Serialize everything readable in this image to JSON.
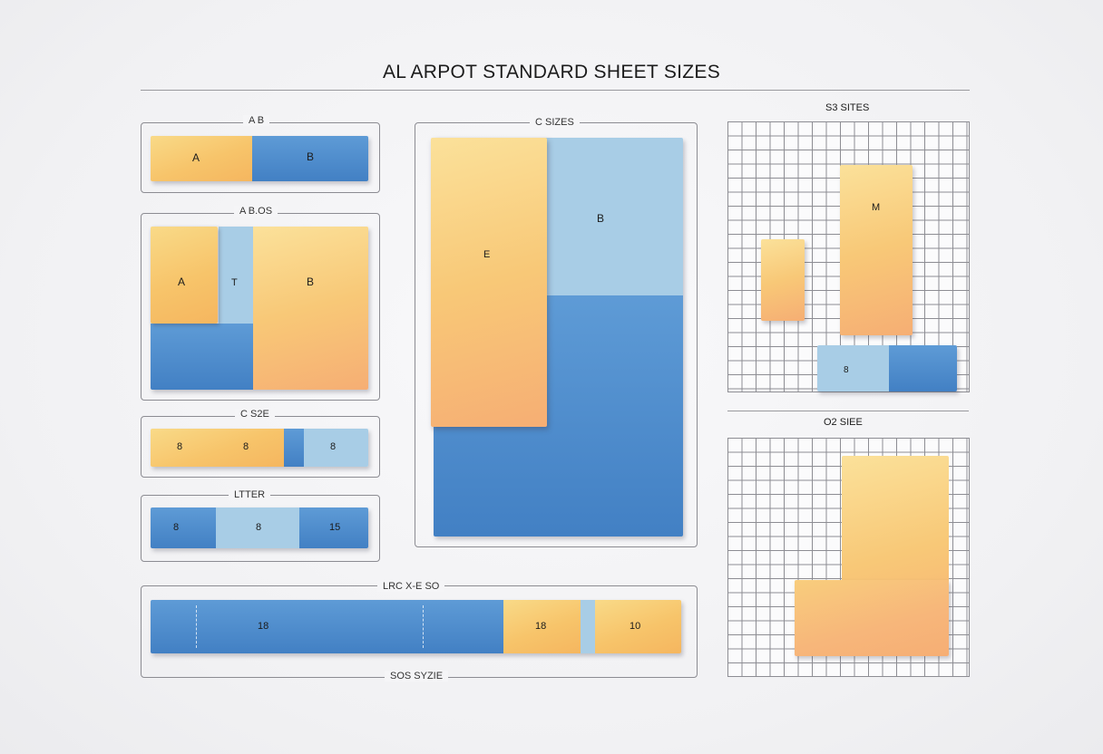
{
  "title": "AL ARPOT STANDARD SHEET SIZES",
  "panels": {
    "ab": {
      "label": "A B",
      "a": "A",
      "b": "B"
    },
    "abos": {
      "label": "A B.OS",
      "a": "A",
      "t": "T",
      "b": "B"
    },
    "csize": {
      "label": "C S2E",
      "v1": "8",
      "v2": "8",
      "v3": "8"
    },
    "letter": {
      "label": "LTTER",
      "v1": "8",
      "v2": "8",
      "v3": "15"
    },
    "large": {
      "label": "LRC X-E SO",
      "v1": "18",
      "v2": "18",
      "v3": "10",
      "bottom_label": "SOS SYZIE"
    },
    "csizes": {
      "label": "C SIZES",
      "e": "E",
      "b": "B"
    },
    "s3sites": {
      "label": "S3 SITES",
      "m": "M",
      "v": "8"
    },
    "o2siee": {
      "label": "O2 SIEE"
    }
  },
  "colors": {
    "yellow": "#f7c46a",
    "blue": "#4a88c9",
    "light_blue": "#a8cde6",
    "peach": "#f6ae74"
  }
}
